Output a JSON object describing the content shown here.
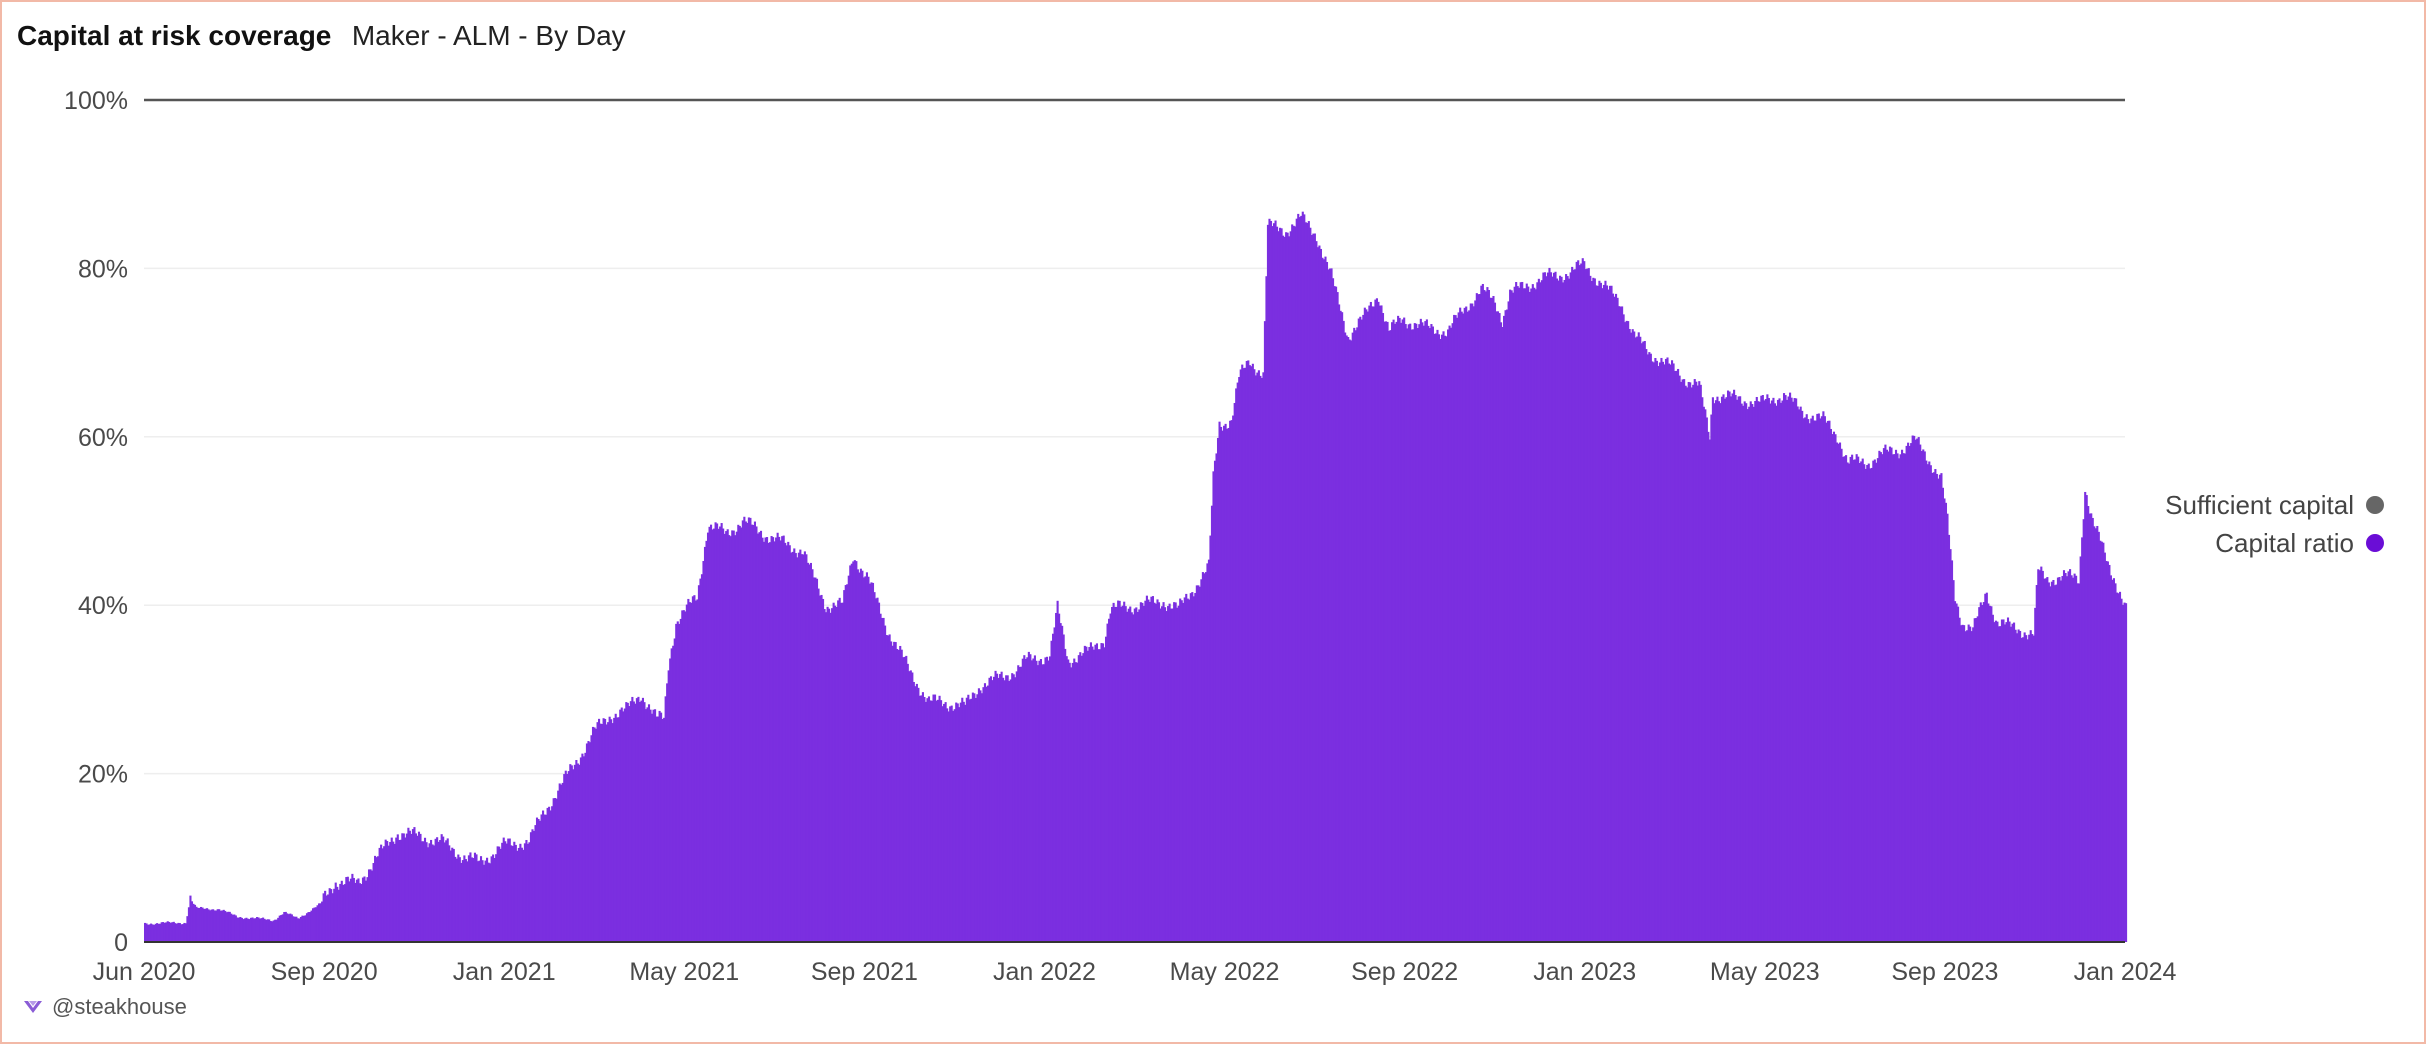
{
  "header": {
    "title": "Capital at risk coverage",
    "subtitle": "Maker - ALM - By Day"
  },
  "footer": {
    "handle": "@steakhouse",
    "icon": "steakhouse-logo-icon"
  },
  "legend": [
    {
      "label": "Sufficient capital",
      "color": "#666666"
    },
    {
      "label": "Capital ratio",
      "color": "#6a0dd6"
    }
  ],
  "chart_data": {
    "type": "bar",
    "title": "Capital at risk coverage",
    "subtitle": "Maker - ALM - By Day",
    "xlabel": "",
    "ylabel": "",
    "x_range": [
      "2020-06-01",
      "2024-01-01"
    ],
    "x_ticks": [
      "Jun 2020",
      "Sep 2020",
      "Jan 2021",
      "May 2021",
      "Sep 2021",
      "Jan 2022",
      "May 2022",
      "Sep 2022",
      "Jan 2023",
      "May 2023",
      "Sep 2023",
      "Jan 2024"
    ],
    "y_ticks": [
      "0",
      "20%",
      "40%",
      "60%",
      "80%",
      "100%"
    ],
    "ylim": [
      0,
      100
    ],
    "grid": true,
    "legend_position": "right",
    "series": [
      {
        "name": "Sufficient capital",
        "type": "line",
        "color": "#666666",
        "points": [
          [
            "2020-06-01",
            100
          ],
          [
            "2024-01-01",
            100
          ]
        ]
      },
      {
        "name": "Capital ratio",
        "type": "bar",
        "color": "#7b2fe0",
        "points": [
          [
            "2020-06-01",
            2.2
          ],
          [
            "2020-06-28",
            2.3
          ],
          [
            "2020-07-01",
            5.1
          ],
          [
            "2020-07-05",
            4.0
          ],
          [
            "2020-07-20",
            3.9
          ],
          [
            "2020-08-01",
            3.0
          ],
          [
            "2020-08-25",
            2.6
          ],
          [
            "2020-09-01",
            3.5
          ],
          [
            "2020-09-10",
            2.8
          ],
          [
            "2020-09-25",
            4.5
          ],
          [
            "2020-10-05",
            7.2
          ],
          [
            "2020-10-20",
            7.0
          ],
          [
            "2020-11-01",
            10.0
          ],
          [
            "2020-11-15",
            13.0
          ],
          [
            "2020-12-01",
            12.5
          ],
          [
            "2020-12-15",
            11.8
          ],
          [
            "2020-12-30",
            10.0
          ],
          [
            "2021-01-08",
            9.5
          ],
          [
            "2021-01-25",
            11.5
          ],
          [
            "2021-02-10",
            12.0
          ],
          [
            "2021-02-20",
            15.5
          ],
          [
            "2021-03-01",
            18.0
          ],
          [
            "2021-03-15",
            22.0
          ],
          [
            "2021-03-25",
            25.0
          ],
          [
            "2021-04-05",
            27.0
          ],
          [
            "2021-04-15",
            27.5
          ],
          [
            "2021-04-25",
            29.5
          ],
          [
            "2021-05-05",
            26.5
          ],
          [
            "2021-05-10",
            26.5
          ],
          [
            "2021-05-13",
            33.0
          ],
          [
            "2021-05-18",
            38.0
          ],
          [
            "2021-06-01",
            41.0
          ],
          [
            "2021-06-08",
            49.5
          ],
          [
            "2021-06-20",
            48.5
          ],
          [
            "2021-07-01",
            50.0
          ],
          [
            "2021-07-15",
            48.5
          ],
          [
            "2021-08-01",
            47.0
          ],
          [
            "2021-08-10",
            46.5
          ],
          [
            "2021-08-15",
            44.0
          ],
          [
            "2021-08-25",
            40.0
          ],
          [
            "2021-09-05",
            40.0
          ],
          [
            "2021-09-12",
            46.0
          ],
          [
            "2021-09-22",
            43.0
          ],
          [
            "2021-10-05",
            37.0
          ],
          [
            "2021-10-20",
            32.0
          ],
          [
            "2021-11-01",
            28.5
          ],
          [
            "2021-11-10",
            28.5
          ],
          [
            "2021-11-25",
            28.0
          ],
          [
            "2021-12-05",
            30.5
          ],
          [
            "2021-12-20",
            31.5
          ],
          [
            "2021-12-30",
            32.5
          ],
          [
            "2022-01-05",
            33.5
          ],
          [
            "2022-01-20",
            34.0
          ],
          [
            "2022-01-25",
            39.5
          ],
          [
            "2022-02-01",
            33.5
          ],
          [
            "2022-02-15",
            34.5
          ],
          [
            "2022-02-25",
            36.0
          ],
          [
            "2022-03-01",
            39.5
          ],
          [
            "2022-03-20",
            40.0
          ],
          [
            "2022-04-05",
            40.5
          ],
          [
            "2022-04-15",
            39.5
          ],
          [
            "2022-04-25",
            42.0
          ],
          [
            "2022-05-05",
            44.5
          ],
          [
            "2022-05-08",
            55.0
          ],
          [
            "2022-05-12",
            61.5
          ],
          [
            "2022-05-20",
            62.0
          ],
          [
            "2022-05-25",
            67.0
          ],
          [
            "2022-06-01",
            69.0
          ],
          [
            "2022-06-10",
            67.5
          ],
          [
            "2022-06-13",
            85.0
          ],
          [
            "2022-06-25",
            84.5
          ],
          [
            "2022-07-05",
            86.0
          ],
          [
            "2022-07-15",
            84.0
          ],
          [
            "2022-07-25",
            79.0
          ],
          [
            "2022-08-05",
            72.0
          ],
          [
            "2022-08-15",
            74.0
          ],
          [
            "2022-08-25",
            77.0
          ],
          [
            "2022-09-01",
            72.5
          ],
          [
            "2022-09-10",
            74.0
          ],
          [
            "2022-09-25",
            73.0
          ],
          [
            "2022-10-10",
            72.5
          ],
          [
            "2022-10-20",
            75.0
          ],
          [
            "2022-11-01",
            77.5
          ],
          [
            "2022-11-10",
            76.0
          ],
          [
            "2022-11-15",
            74.0
          ],
          [
            "2022-11-20",
            77.0
          ],
          [
            "2022-12-01",
            78.0
          ],
          [
            "2022-12-15",
            79.0
          ],
          [
            "2022-12-30",
            79.5
          ],
          [
            "2023-01-08",
            80.5
          ],
          [
            "2023-01-20",
            78.0
          ],
          [
            "2023-02-01",
            76.0
          ],
          [
            "2023-02-10",
            72.0
          ],
          [
            "2023-02-20",
            70.0
          ],
          [
            "2023-03-01",
            69.0
          ],
          [
            "2023-03-15",
            67.0
          ],
          [
            "2023-03-25",
            66.0
          ],
          [
            "2023-04-01",
            60.0
          ],
          [
            "2023-04-03",
            65.0
          ],
          [
            "2023-04-20",
            64.5
          ],
          [
            "2023-05-05",
            64.0
          ],
          [
            "2023-05-20",
            65.0
          ],
          [
            "2023-06-01",
            63.0
          ],
          [
            "2023-06-15",
            62.0
          ],
          [
            "2023-06-25",
            60.0
          ],
          [
            "2023-07-01",
            57.0
          ],
          [
            "2023-07-15",
            57.0
          ],
          [
            "2023-07-25",
            58.0
          ],
          [
            "2023-08-05",
            58.5
          ],
          [
            "2023-08-15",
            59.5
          ],
          [
            "2023-08-25",
            57.0
          ],
          [
            "2023-09-01",
            55.0
          ],
          [
            "2023-09-05",
            50.0
          ],
          [
            "2023-09-10",
            41.0
          ],
          [
            "2023-09-15",
            38.0
          ],
          [
            "2023-09-22",
            37.0
          ],
          [
            "2023-10-01",
            41.5
          ],
          [
            "2023-10-08",
            38.0
          ],
          [
            "2023-10-15",
            37.5
          ],
          [
            "2023-10-25",
            37.0
          ],
          [
            "2023-11-01",
            36.5
          ],
          [
            "2023-11-04",
            44.0
          ],
          [
            "2023-11-10",
            43.0
          ],
          [
            "2023-11-20",
            43.5
          ],
          [
            "2023-12-01",
            43.0
          ],
          [
            "2023-12-05",
            54.0
          ],
          [
            "2023-12-10",
            50.0
          ],
          [
            "2023-12-20",
            45.0
          ],
          [
            "2023-12-25",
            43.0
          ],
          [
            "2024-01-01",
            39.5
          ]
        ]
      }
    ]
  }
}
